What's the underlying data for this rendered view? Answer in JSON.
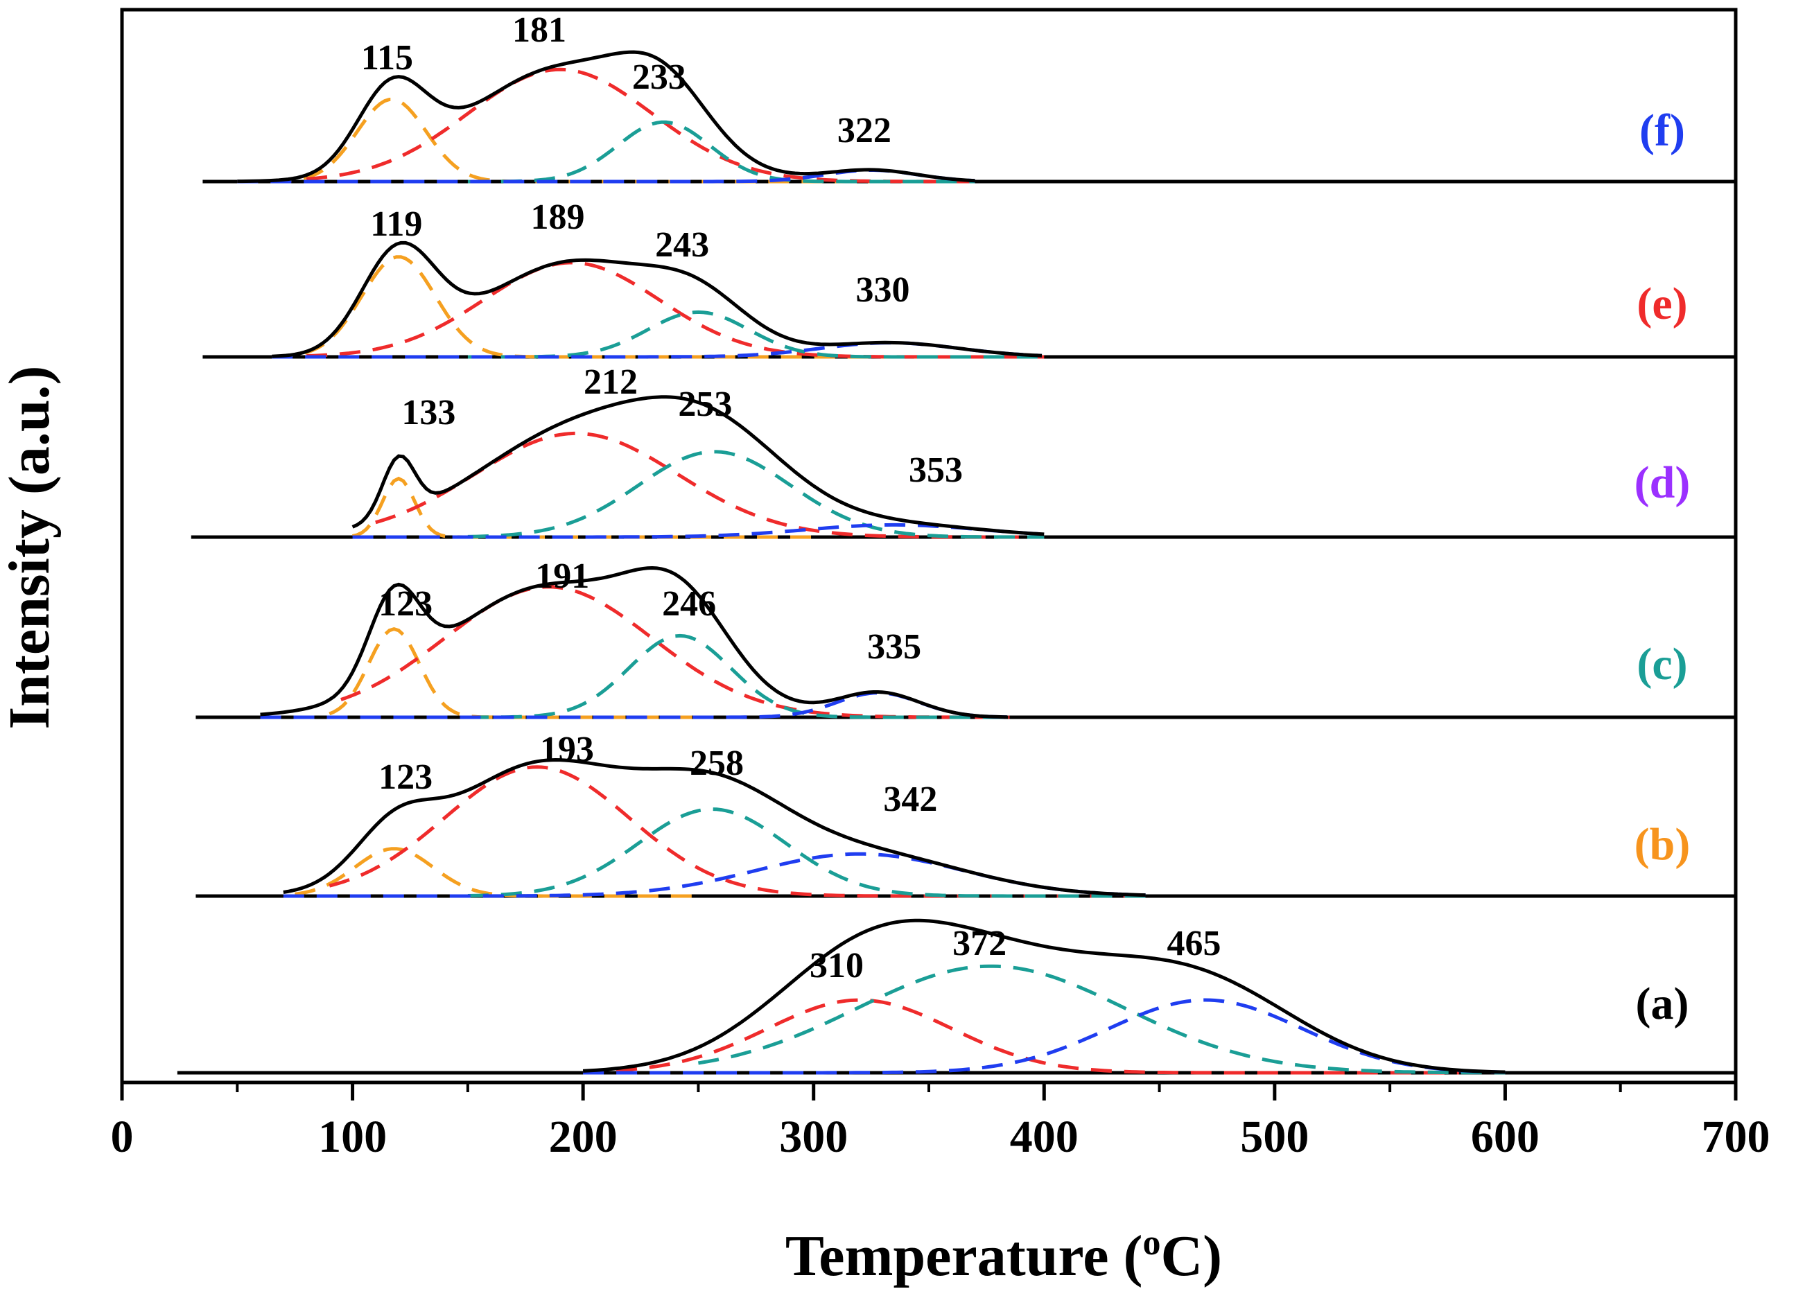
{
  "chart_data": {
    "type": "line",
    "title": "",
    "xlabel": "Temperature (",
    "xlabel_sup": "o",
    "xlabel_unit": "C)",
    "ylabel": "Intensity (a.u.)",
    "xlim": [
      0,
      700
    ],
    "x_ticks": [
      "0",
      "100",
      "200",
      "300",
      "400",
      "500",
      "600",
      "700"
    ],
    "x_tick_values": [
      0,
      100,
      200,
      300,
      400,
      500,
      600,
      700
    ],
    "component_colors": {
      "orange": "#f5a020",
      "red": "#ef2b2b",
      "teal": "#1a9e96",
      "blue": "#1f3df0",
      "envelope": "#000000"
    },
    "series": [
      {
        "name": "(a)",
        "label_color": "#000000",
        "baseline_range": [
          24,
          700
        ],
        "peak_labels": [
          {
            "text": "310",
            "temperature": 310
          },
          {
            "text": "372",
            "temperature": 372
          },
          {
            "text": "465",
            "temperature": 465
          }
        ],
        "components": [
          {
            "color": "red",
            "center": 320,
            "width": 40,
            "height": 0.58,
            "range": [
              200,
              580
            ]
          },
          {
            "color": "teal",
            "center": 377,
            "width": 58,
            "height": 0.85,
            "range": [
              250,
              600
            ]
          },
          {
            "color": "blue",
            "center": 470,
            "width": 42,
            "height": 0.58,
            "range": [
              200,
              600
            ]
          }
        ]
      },
      {
        "name": "(b)",
        "label_color": "#f7941d",
        "baseline_range": [
          32,
          700
        ],
        "peak_labels": [
          {
            "text": "123",
            "temperature": 123
          },
          {
            "text": "193",
            "temperature": 193
          },
          {
            "text": "258",
            "temperature": 258
          },
          {
            "text": "342",
            "temperature": 342
          }
        ],
        "components": [
          {
            "color": "orange",
            "center": 118,
            "width": 17,
            "height": 0.36,
            "range": [
              75,
              250
            ]
          },
          {
            "color": "red",
            "center": 180,
            "width": 40,
            "height": 0.98,
            "range": [
              90,
              445
            ]
          },
          {
            "color": "teal",
            "center": 256,
            "width": 32,
            "height": 0.66,
            "range": [
              150,
              445
            ]
          },
          {
            "color": "blue",
            "center": 320,
            "width": 45,
            "height": 0.32,
            "range": [
              70,
              445
            ]
          }
        ]
      },
      {
        "name": "(c)",
        "label_color": "#1a9e96",
        "baseline_range": [
          32,
          700
        ],
        "peak_labels": [
          {
            "text": "123",
            "temperature": 123
          },
          {
            "text": "191",
            "temperature": 191
          },
          {
            "text": "246",
            "temperature": 246
          },
          {
            "text": "335",
            "temperature": 335
          }
        ],
        "components": [
          {
            "color": "orange",
            "center": 118,
            "width": 11,
            "height": 0.65,
            "range": [
              90,
              250
            ]
          },
          {
            "color": "red",
            "center": 185,
            "width": 45,
            "height": 0.96,
            "range": [
              95,
              385
            ]
          },
          {
            "color": "teal",
            "center": 242,
            "width": 22,
            "height": 0.6,
            "range": [
              150,
              385
            ]
          },
          {
            "color": "blue",
            "center": 328,
            "width": 18,
            "height": 0.18,
            "range": [
              60,
              385
            ]
          }
        ]
      },
      {
        "name": "(d)",
        "label_color": "#9b30ff",
        "baseline_range": [
          30,
          700
        ],
        "peak_labels": [
          {
            "text": "133",
            "temperature": 133
          },
          {
            "text": "212",
            "temperature": 212
          },
          {
            "text": "253",
            "temperature": 253
          },
          {
            "text": "353",
            "temperature": 353
          }
        ],
        "components": [
          {
            "color": "orange",
            "center": 120,
            "width": 7,
            "height": 0.48,
            "range": [
              100,
              300
            ]
          },
          {
            "color": "red",
            "center": 197,
            "width": 44,
            "height": 0.85,
            "range": [
              110,
              400
            ]
          },
          {
            "color": "teal",
            "center": 257,
            "width": 33,
            "height": 0.7,
            "range": [
              150,
              400
            ]
          },
          {
            "color": "blue",
            "center": 335,
            "width": 38,
            "height": 0.1,
            "range": [
              100,
              400
            ]
          }
        ]
      },
      {
        "name": "(e)",
        "label_color": "#ef2b2b",
        "baseline_range": [
          35,
          700
        ],
        "peak_labels": [
          {
            "text": "119",
            "temperature": 119
          },
          {
            "text": "189",
            "temperature": 189
          },
          {
            "text": "243",
            "temperature": 243
          },
          {
            "text": "330",
            "temperature": 330
          }
        ],
        "components": [
          {
            "color": "orange",
            "center": 120,
            "width": 16,
            "height": 0.85,
            "range": [
              65,
              400
            ]
          },
          {
            "color": "red",
            "center": 195,
            "width": 38,
            "height": 0.8,
            "range": [
              80,
              400
            ]
          },
          {
            "color": "teal",
            "center": 250,
            "width": 22,
            "height": 0.38,
            "range": [
              150,
              400
            ]
          },
          {
            "color": "blue",
            "center": 333,
            "width": 30,
            "height": 0.12,
            "range": [
              65,
              400
            ]
          }
        ]
      },
      {
        "name": "(f)",
        "label_color": "#1f3df0",
        "baseline_range": [
          35,
          700
        ],
        "peak_labels": [
          {
            "text": "115",
            "temperature": 115
          },
          {
            "text": "181",
            "temperature": 181
          },
          {
            "text": "233",
            "temperature": 233
          },
          {
            "text": "322",
            "temperature": 322
          }
        ],
        "components": [
          {
            "color": "orange",
            "center": 117,
            "width": 15,
            "height": 0.72,
            "range": [
              50,
              370
            ]
          },
          {
            "color": "red",
            "center": 190,
            "width": 40,
            "height": 0.98,
            "range": [
              80,
              370
            ]
          },
          {
            "color": "teal",
            "center": 235,
            "width": 20,
            "height": 0.52,
            "range": [
              150,
              370
            ]
          },
          {
            "color": "blue",
            "center": 325,
            "width": 20,
            "height": 0.1,
            "range": [
              50,
              370
            ]
          }
        ]
      }
    ]
  }
}
